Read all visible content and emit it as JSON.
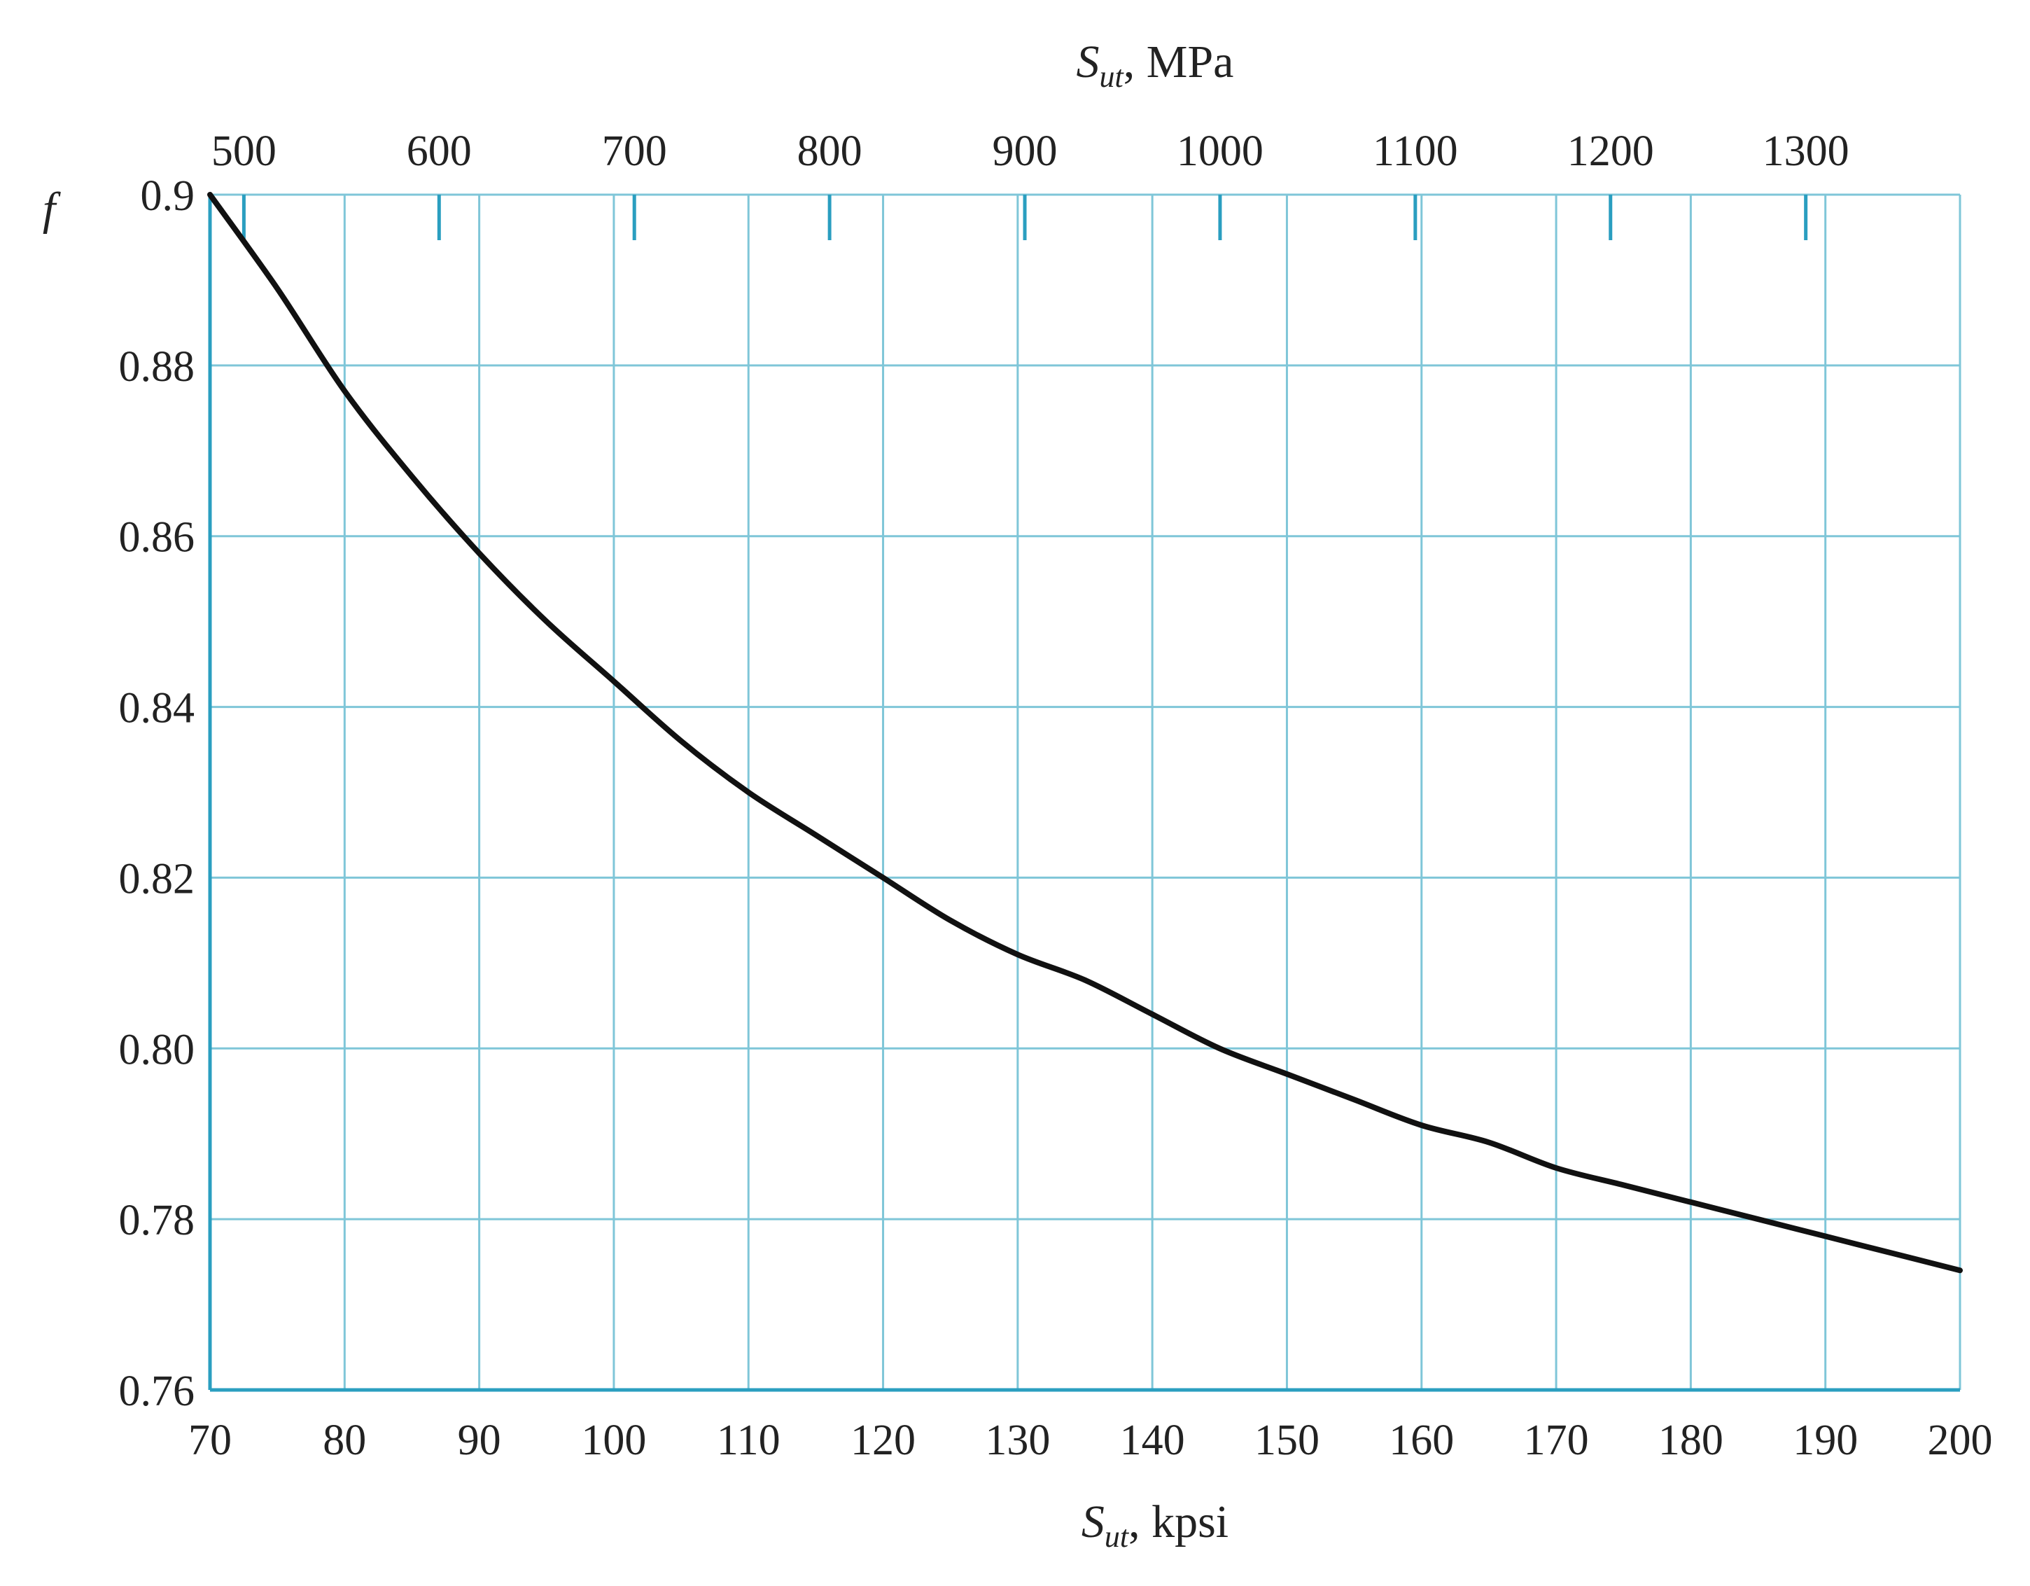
{
  "chart_data": {
    "type": "line",
    "title": "",
    "ylabel": "f",
    "xlabel_bottom": {
      "symbol": "S",
      "subscript": "ut",
      "rest": ", kpsi"
    },
    "xlabel_top": {
      "symbol": "S",
      "subscript": "ut",
      "rest": ", MPa"
    },
    "xlim": [
      70,
      200
    ],
    "ylim": [
      0.76,
      0.9
    ],
    "grid": true,
    "x_ticks": [
      70,
      80,
      90,
      100,
      110,
      120,
      130,
      140,
      150,
      160,
      170,
      180,
      190,
      200
    ],
    "y_ticks": [
      0.76,
      0.78,
      0.8,
      0.82,
      0.84,
      0.86,
      0.88,
      0.9
    ],
    "y_tick_labels": [
      "0.76",
      "0.78",
      "0.80",
      "0.82",
      "0.84",
      "0.86",
      "0.88",
      "0.9"
    ],
    "top_ticks_mpa": [
      500,
      600,
      700,
      800,
      900,
      1000,
      1100,
      1200,
      1300
    ],
    "mpa_per_kpsi": 6.895,
    "series": [
      {
        "x": [
          70,
          75,
          80,
          85,
          90,
          95,
          100,
          105,
          110,
          115,
          120,
          125,
          130,
          135,
          140,
          145,
          150,
          155,
          160,
          165,
          170,
          175,
          180,
          185,
          190,
          195,
          200
        ],
        "y": [
          0.9,
          0.889,
          0.877,
          0.867,
          0.858,
          0.85,
          0.843,
          0.836,
          0.83,
          0.825,
          0.82,
          0.815,
          0.811,
          0.808,
          0.804,
          0.8,
          0.797,
          0.794,
          0.791,
          0.789,
          0.786,
          0.784,
          0.782,
          0.78,
          0.778,
          0.776,
          0.774
        ]
      }
    ]
  },
  "colors": {
    "grid": "#7fc6d8",
    "axis": "#2a9ec0",
    "curve": "#111111",
    "text": "#222222"
  }
}
